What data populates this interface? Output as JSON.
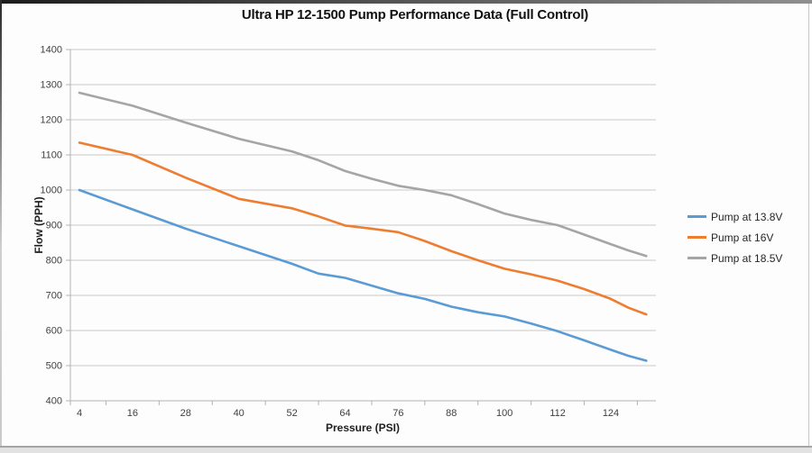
{
  "chart_data": {
    "type": "line",
    "title": "Ultra HP 12-1500 Pump Performance Data (Full Control)",
    "xlabel": "Pressure (PSI)",
    "ylabel": "Flow (PPH)",
    "x_ticks": [
      4,
      16,
      28,
      40,
      52,
      64,
      76,
      88,
      100,
      112,
      124
    ],
    "y_ticks": [
      400,
      500,
      600,
      700,
      800,
      900,
      1000,
      1100,
      1200,
      1300,
      1400
    ],
    "xlim": [
      4,
      134
    ],
    "ylim": [
      400,
      1400
    ],
    "grid": "horizontal-only",
    "legend_position": "right",
    "x": [
      4,
      16,
      28,
      40,
      52,
      58,
      64,
      70,
      76,
      82,
      88,
      94,
      100,
      106,
      112,
      118,
      124,
      128,
      132
    ],
    "series": [
      {
        "name": "Pump at 13.8V",
        "color": "#5B9BD5",
        "values": [
          1000,
          945,
          890,
          840,
          790,
          762,
          750,
          728,
          706,
          690,
          668,
          652,
          640,
          620,
          598,
          572,
          545,
          528,
          514
        ]
      },
      {
        "name": "Pump at 16V",
        "color": "#ED7D31",
        "values": [
          1135,
          1100,
          1035,
          975,
          948,
          925,
          899,
          890,
          880,
          855,
          826,
          800,
          776,
          760,
          742,
          718,
          690,
          665,
          646
        ]
      },
      {
        "name": "Pump at 18.5V",
        "color": "#A5A5A5",
        "values": [
          1277,
          1240,
          1192,
          1146,
          1110,
          1085,
          1054,
          1032,
          1012,
          1000,
          985,
          960,
          933,
          915,
          900,
          873,
          846,
          828,
          812
        ]
      }
    ]
  },
  "styles": {
    "background": "#fdfdfd",
    "grid_color": "#c9c9c9",
    "axis_color": "#b2b2b2",
    "tick_label_color": "#3f3f3f",
    "axis_title_color": "#1f1f1f",
    "title_color": "#111111",
    "top_bar_colors": [
      "#1c1c1c",
      "#8f8f8f"
    ]
  }
}
